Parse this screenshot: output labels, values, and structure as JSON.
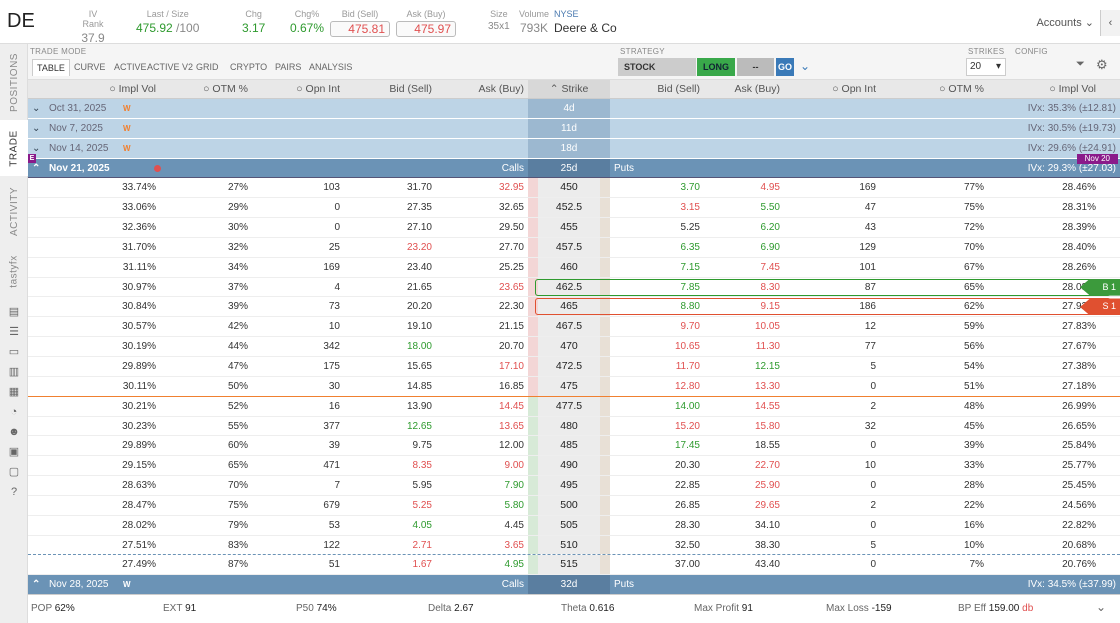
{
  "header": {
    "symbol": "DE",
    "iv_rank_label": "IV Rank",
    "iv_rank": "37.9",
    "last_label": "Last / Size",
    "last": "475.92",
    "last_size": "/100",
    "chg_label": "Chg",
    "chg": "3.17",
    "chgpct_label": "Chg%",
    "chgpct": "0.67%",
    "bid_label": "Bid (Sell)",
    "bid": "475.81",
    "ask_label": "Ask (Buy)",
    "ask": "475.97",
    "size_label": "Size",
    "size": "35x1",
    "volume_label": "Volume",
    "volume": "793K",
    "exchange": "NYSE",
    "company": "Deere & Co",
    "accounts": "Accounts"
  },
  "sidebar": {
    "tabs": [
      "POSITIONS",
      "TRADE",
      "ACTIVITY",
      "tastyfx"
    ]
  },
  "toolbar": {
    "trade_mode_label": "TRADE MODE",
    "modes": [
      "TABLE",
      "CURVE",
      "ACTIVE",
      "ACTIVE V2",
      "GRID",
      "CRYPTO",
      "PAIRS",
      "ANALYSIS"
    ],
    "strategy_label": "STRATEGY",
    "strategy": "STOCK",
    "long": "LONG",
    "dash": "--",
    "go": "GO",
    "strikes_label": "STRIKES",
    "strikes": "20",
    "config_label": "CONFIG"
  },
  "columns": {
    "impl_vol": "Impl Vol",
    "otm": "OTM %",
    "opn_int": "Opn Int",
    "bid": "Bid (Sell)",
    "ask": "Ask (Buy)",
    "strike": "Strike"
  },
  "expirations": [
    {
      "date": "Oct 31, 2025",
      "tag": "W",
      "dte": "4d",
      "ivx": "IVx: 35.3% (±12.81)"
    },
    {
      "date": "Nov 7, 2025",
      "tag": "W",
      "dte": "11d",
      "ivx": "IVx: 30.5% (±19.73)"
    },
    {
      "date": "Nov 14, 2025",
      "tag": "W",
      "dte": "18d",
      "ivx": "IVx: 29.6% (±24.91)"
    }
  ],
  "open_exp": {
    "date": "Nov 21, 2025",
    "calls": "Calls",
    "dte": "25d",
    "puts": "Puts",
    "ivx": "IVx: 29.3% (±27.03)",
    "badge": "Nov 20",
    "flag": "E"
  },
  "rows": [
    {
      "civ": "33.74%",
      "cotm": "27%",
      "coi": "103",
      "cbid": "31.70",
      "cask": "32.95",
      "strike": "450",
      "pbid": "3.70",
      "pask": "4.95",
      "poi": "169",
      "potm": "77%",
      "piv": "28.46%"
    },
    {
      "civ": "33.06%",
      "cotm": "29%",
      "coi": "0",
      "cbid": "27.35",
      "cask": "32.65",
      "strike": "452.5",
      "pbid": "3.15",
      "pask": "5.50",
      "poi": "47",
      "potm": "75%",
      "piv": "28.31%"
    },
    {
      "civ": "32.36%",
      "cotm": "30%",
      "coi": "0",
      "cbid": "27.10",
      "cask": "29.50",
      "strike": "455",
      "pbid": "5.25",
      "pask": "6.20",
      "poi": "43",
      "potm": "72%",
      "piv": "28.39%"
    },
    {
      "civ": "31.70%",
      "cotm": "32%",
      "coi": "25",
      "cbid": "23.20",
      "cask": "27.70",
      "strike": "457.5",
      "pbid": "6.35",
      "pask": "6.90",
      "poi": "129",
      "potm": "70%",
      "piv": "28.40%"
    },
    {
      "civ": "31.11%",
      "cotm": "34%",
      "coi": "169",
      "cbid": "23.40",
      "cask": "25.25",
      "strike": "460",
      "pbid": "7.15",
      "pask": "7.45",
      "poi": "101",
      "potm": "67%",
      "piv": "28.26%"
    },
    {
      "civ": "30.97%",
      "cotm": "37%",
      "coi": "4",
      "cbid": "21.65",
      "cask": "23.65",
      "strike": "462.5",
      "pbid": "7.85",
      "pask": "8.30",
      "poi": "87",
      "potm": "65%",
      "piv": "28.03%",
      "leg": "B 1"
    },
    {
      "civ": "30.84%",
      "cotm": "39%",
      "coi": "73",
      "cbid": "20.20",
      "cask": "22.30",
      "strike": "465",
      "pbid": "8.80",
      "pask": "9.15",
      "poi": "186",
      "potm": "62%",
      "piv": "27.92%",
      "leg": "S 1"
    },
    {
      "civ": "30.57%",
      "cotm": "42%",
      "coi": "10",
      "cbid": "19.10",
      "cask": "21.15",
      "strike": "467.5",
      "pbid": "9.70",
      "pask": "10.05",
      "poi": "12",
      "potm": "59%",
      "piv": "27.83%"
    },
    {
      "civ": "30.19%",
      "cotm": "44%",
      "coi": "342",
      "cbid": "18.00",
      "cask": "20.70",
      "strike": "470",
      "pbid": "10.65",
      "pask": "11.30",
      "poi": "77",
      "potm": "56%",
      "piv": "27.67%"
    },
    {
      "civ": "29.89%",
      "cotm": "47%",
      "coi": "175",
      "cbid": "15.65",
      "cask": "17.10",
      "strike": "472.5",
      "pbid": "11.70",
      "pask": "12.15",
      "poi": "5",
      "potm": "54%",
      "piv": "27.38%"
    },
    {
      "civ": "30.11%",
      "cotm": "50%",
      "coi": "30",
      "cbid": "14.85",
      "cask": "16.85",
      "strike": "475",
      "pbid": "12.80",
      "pask": "13.30",
      "poi": "0",
      "potm": "51%",
      "piv": "27.18%"
    },
    {
      "civ": "30.21%",
      "cotm": "52%",
      "coi": "16",
      "cbid": "13.90",
      "cask": "14.45",
      "strike": "477.5",
      "pbid": "14.00",
      "pask": "14.55",
      "poi": "2",
      "potm": "48%",
      "piv": "26.99%"
    },
    {
      "civ": "30.23%",
      "cotm": "55%",
      "coi": "377",
      "cbid": "12.65",
      "cask": "13.65",
      "strike": "480",
      "pbid": "15.20",
      "pask": "15.80",
      "poi": "32",
      "potm": "45%",
      "piv": "26.65%"
    },
    {
      "civ": "29.89%",
      "cotm": "60%",
      "coi": "39",
      "cbid": "9.75",
      "cask": "12.00",
      "strike": "485",
      "pbid": "17.45",
      "pask": "18.55",
      "poi": "0",
      "potm": "39%",
      "piv": "25.84%"
    },
    {
      "civ": "29.15%",
      "cotm": "65%",
      "coi": "471",
      "cbid": "8.35",
      "cask": "9.00",
      "strike": "490",
      "pbid": "20.30",
      "pask": "22.70",
      "poi": "10",
      "potm": "33%",
      "piv": "25.77%"
    },
    {
      "civ": "28.63%",
      "cotm": "70%",
      "coi": "7",
      "cbid": "5.95",
      "cask": "7.90",
      "strike": "495",
      "pbid": "22.85",
      "pask": "25.90",
      "poi": "0",
      "potm": "28%",
      "piv": "25.45%"
    },
    {
      "civ": "28.47%",
      "cotm": "75%",
      "coi": "679",
      "cbid": "5.25",
      "cask": "5.80",
      "strike": "500",
      "pbid": "26.85",
      "pask": "29.65",
      "poi": "2",
      "potm": "22%",
      "piv": "24.56%"
    },
    {
      "civ": "28.02%",
      "cotm": "79%",
      "coi": "53",
      "cbid": "4.05",
      "cask": "4.45",
      "strike": "505",
      "pbid": "28.30",
      "pask": "34.10",
      "poi": "0",
      "potm": "16%",
      "piv": "22.82%"
    },
    {
      "civ": "27.51%",
      "cotm": "83%",
      "coi": "122",
      "cbid": "2.71",
      "cask": "3.65",
      "strike": "510",
      "pbid": "32.50",
      "pask": "38.30",
      "poi": "5",
      "potm": "10%",
      "piv": "20.68%"
    },
    {
      "civ": "27.49%",
      "cotm": "87%",
      "coi": "51",
      "cbid": "1.67",
      "cask": "4.95",
      "strike": "515",
      "pbid": "37.00",
      "pask": "43.40",
      "poi": "0",
      "potm": "7%",
      "piv": "20.76%"
    }
  ],
  "next_exp": {
    "date": "Nov 28, 2025",
    "tag": "W",
    "calls": "Calls",
    "dte": "32d",
    "puts": "Puts",
    "ivx": "IVx: 34.5% (±37.99)"
  },
  "footer": {
    "pop_l": "POP",
    "pop": "62%",
    "ext_l": "EXT",
    "ext": "91",
    "p50_l": "P50",
    "p50": "74%",
    "delta_l": "Delta",
    "delta": "2.67",
    "theta_l": "Theta",
    "theta": "0.616",
    "maxp_l": "Max Profit",
    "maxp": "91",
    "maxl_l": "Max Loss",
    "maxl": "-159",
    "bp_l": "BP Eff",
    "bp": "159.00",
    "bp_unit": "db"
  }
}
